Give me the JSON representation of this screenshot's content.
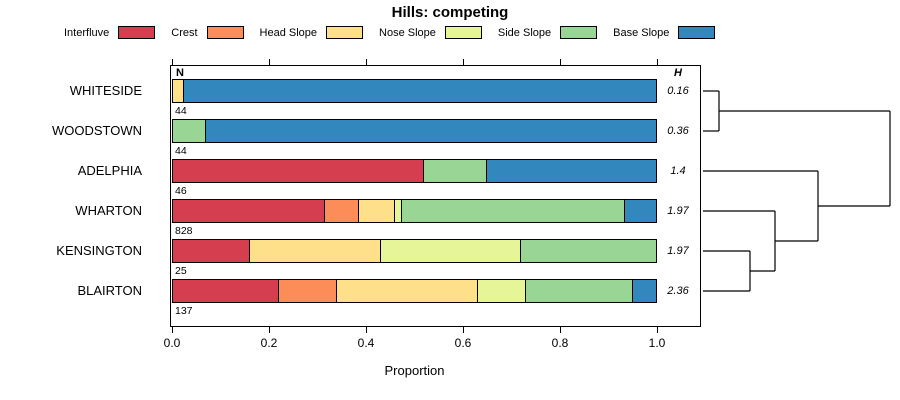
{
  "title": "Hills: competing",
  "legend": [
    {
      "label": "Interfluve",
      "color": "#D53E4F"
    },
    {
      "label": "Crest",
      "color": "#FC8D59"
    },
    {
      "label": "Head Slope",
      "color": "#FEE08B"
    },
    {
      "label": "Nose Slope",
      "color": "#E6F598"
    },
    {
      "label": "Side Slope",
      "color": "#99D594"
    },
    {
      "label": "Base Slope",
      "color": "#3288BD"
    }
  ],
  "columns": {
    "n_header": "N",
    "h_header": "H"
  },
  "axis": {
    "label": "Proportion",
    "tick_labels": [
      "0.0",
      "0.2",
      "0.4",
      "0.6",
      "0.8",
      "1.0"
    ],
    "tick_values": [
      0,
      0.2,
      0.4,
      0.6,
      0.8,
      1.0
    ]
  },
  "chart_data": {
    "type": "bar",
    "orientation": "horizontal-stacked",
    "title": "Hills: competing",
    "xlabel": "Proportion",
    "xlim": [
      0,
      1
    ],
    "categories": [
      "WHITESIDE",
      "WOODSTOWN",
      "ADELPHIA",
      "WHARTON",
      "KENSINGTON",
      "BLAIRTON"
    ],
    "n_values": [
      44,
      44,
      46,
      828,
      25,
      137
    ],
    "h_values": [
      "0.16",
      "0.36",
      "1.4",
      "1.97",
      "1.97",
      "2.36"
    ],
    "series": [
      {
        "name": "Interfluve",
        "color": "#D53E4F",
        "values": [
          0,
          0,
          0.52,
          0.315,
          0.16,
          0.22
        ]
      },
      {
        "name": "Crest",
        "color": "#FC8D59",
        "values": [
          0,
          0,
          0,
          0.07,
          0,
          0.12
        ]
      },
      {
        "name": "Head Slope",
        "color": "#FEE08B",
        "values": [
          0.025,
          0,
          0,
          0.075,
          0.27,
          0.29
        ]
      },
      {
        "name": "Nose Slope",
        "color": "#E6F598",
        "values": [
          0,
          0,
          0,
          0.015,
          0.29,
          0.1
        ]
      },
      {
        "name": "Side Slope",
        "color": "#99D594",
        "values": [
          0,
          0.07,
          0.13,
          0.46,
          0.28,
          0.22
        ]
      },
      {
        "name": "Base Slope",
        "color": "#3288BD",
        "values": [
          0.975,
          0.93,
          0.35,
          0.065,
          0,
          0.05
        ]
      }
    ],
    "dendrogram": {
      "leaf_x": 2,
      "merges": [
        {
          "a": "L0",
          "b": "L1",
          "x": 18
        },
        {
          "a": "L4",
          "b": "L5",
          "x": 49
        },
        {
          "a": "M1",
          "b": "L3",
          "x": 74
        },
        {
          "a": "M2",
          "b": "L2",
          "x": 117
        },
        {
          "a": "M0",
          "b": "M3",
          "x": 189
        }
      ]
    }
  }
}
